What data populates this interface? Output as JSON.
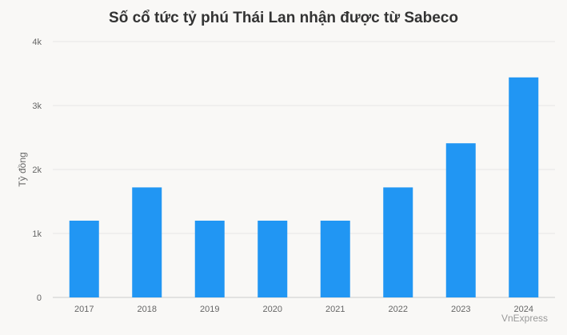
{
  "chart_data": {
    "type": "bar",
    "title": "Số cổ tức tỷ phú Thái Lan nhận được từ Sabeco",
    "xlabel": "",
    "ylabel": "Tỷ đồng",
    "categories": [
      "2017",
      "2018",
      "2019",
      "2020",
      "2021",
      "2022",
      "2023",
      "2024"
    ],
    "series": [
      {
        "values": [
          1200,
          1720,
          1200,
          1200,
          1200,
          1720,
          2410,
          3440
        ]
      }
    ],
    "ylim": [
      0,
      4000
    ],
    "yticks": [
      0,
      1000,
      2000,
      3000,
      4000
    ],
    "ytick_labels": [
      "0",
      "1k",
      "2k",
      "3k",
      "4k"
    ],
    "grid": true,
    "bar_color": "#2196f3"
  },
  "source_credit": "VnExpress"
}
